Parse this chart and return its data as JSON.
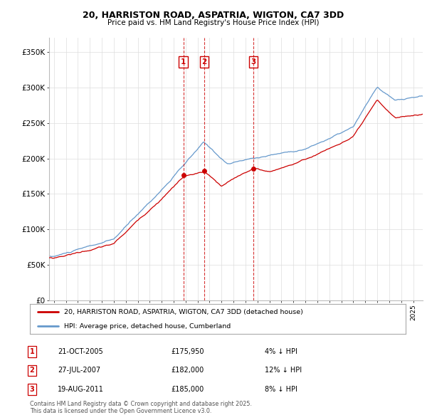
{
  "title1": "20, HARRISTON ROAD, ASPATRIA, WIGTON, CA7 3DD",
  "title2": "Price paid vs. HM Land Registry's House Price Index (HPI)",
  "ylabel_ticks": [
    "£0",
    "£50K",
    "£100K",
    "£150K",
    "£200K",
    "£250K",
    "£300K",
    "£350K"
  ],
  "ytick_vals": [
    0,
    50000,
    100000,
    150000,
    200000,
    250000,
    300000,
    350000
  ],
  "ylim": [
    0,
    370000
  ],
  "xlim_start": 1994.6,
  "xlim_end": 2025.8,
  "line1_label": "20, HARRISTON ROAD, ASPATRIA, WIGTON, CA7 3DD (detached house)",
  "line1_color": "#cc0000",
  "line2_label": "HPI: Average price, detached house, Cumberland",
  "line2_color": "#6699cc",
  "sales": [
    {
      "num": 1,
      "x": 2005.81,
      "price": 175950,
      "date": "21-OCT-2005",
      "pct": "4%"
    },
    {
      "num": 2,
      "x": 2007.57,
      "price": 182000,
      "date": "27-JUL-2007",
      "pct": "12%"
    },
    {
      "num": 3,
      "x": 2011.64,
      "price": 185000,
      "date": "19-AUG-2011",
      "pct": "8%"
    }
  ],
  "footer1": "Contains HM Land Registry data © Crown copyright and database right 2025.",
  "footer2": "This data is licensed under the Open Government Licence v3.0.",
  "bg_color": "#ffffff",
  "grid_color": "#dddddd",
  "table_rows": [
    {
      "num": "1",
      "date": "21-OCT-2005",
      "price": "£175,950",
      "pct": "4% ↓ HPI"
    },
    {
      "num": "2",
      "date": "27-JUL-2007",
      "price": "£182,000",
      "pct": "12% ↓ HPI"
    },
    {
      "num": "3",
      "date": "19-AUG-2011",
      "price": "£185,000",
      "pct": "8% ↓ HPI"
    }
  ]
}
